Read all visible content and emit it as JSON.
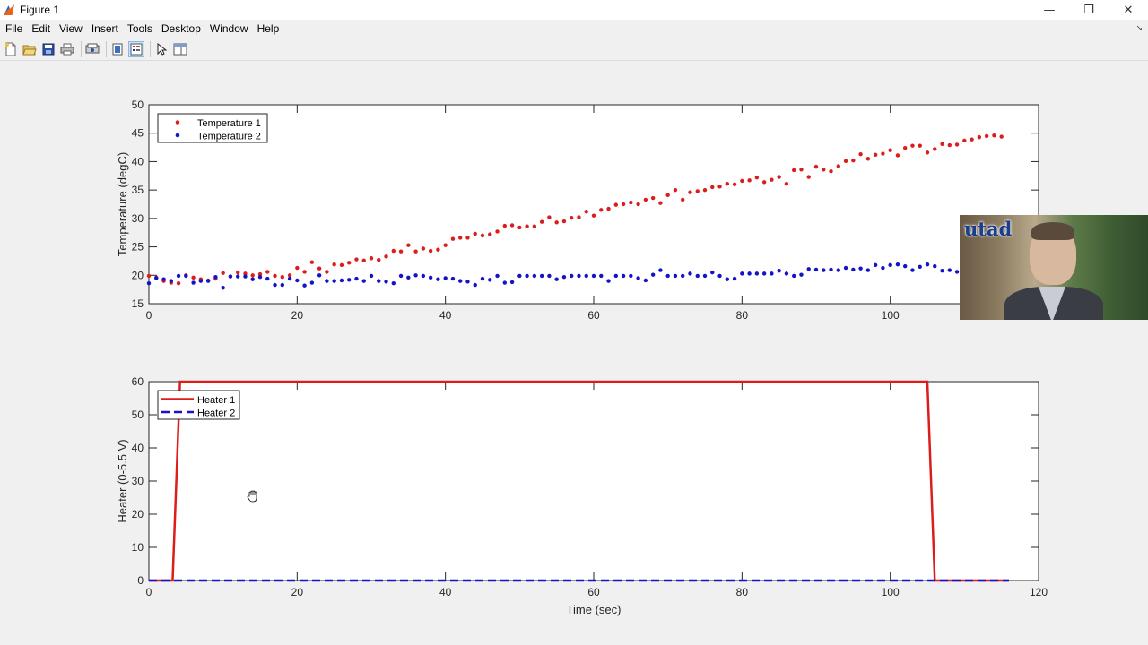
{
  "window": {
    "title": "Figure 1",
    "minimize_glyph": "—",
    "restore_glyph": "❐",
    "close_glyph": "✕"
  },
  "menu": [
    "File",
    "Edit",
    "View",
    "Insert",
    "Tools",
    "Desktop",
    "Window",
    "Help"
  ],
  "toolbar": {
    "icons": [
      "new-figure-icon",
      "open-file-icon",
      "save-icon",
      "print-icon",
      "print-preview-icon",
      "link-plot-icon",
      "insert-legend-icon",
      "edit-plot-cursor-icon",
      "property-inspector-icon"
    ]
  },
  "webcam": {
    "logo_text": "utad"
  },
  "chart_data": [
    {
      "type": "scatter",
      "title": "",
      "xlabel": "",
      "ylabel": "Temperature (degC)",
      "xlim": [
        0,
        120
      ],
      "ylim": [
        15,
        50
      ],
      "xticks": [
        0,
        20,
        40,
        60,
        80,
        100
      ],
      "yticks": [
        15,
        20,
        25,
        30,
        35,
        40,
        45,
        50
      ],
      "grid": false,
      "legend": "top-left",
      "series": [
        {
          "name": "Temperature 1",
          "color": "#dd1c1c",
          "x": [
            0,
            1,
            2,
            3,
            4,
            5,
            6,
            7,
            8,
            9,
            10,
            11,
            12,
            13,
            14,
            15,
            16,
            17,
            18,
            19,
            20,
            21,
            22,
            23,
            24,
            25,
            26,
            27,
            28,
            29,
            30,
            31,
            32,
            33,
            34,
            35,
            36,
            37,
            38,
            39,
            40,
            41,
            42,
            43,
            44,
            45,
            46,
            47,
            48,
            49,
            50,
            51,
            52,
            53,
            54,
            55,
            56,
            57,
            58,
            59,
            60,
            61,
            62,
            63,
            64,
            65,
            66,
            67,
            68,
            69,
            70,
            71,
            72,
            73,
            74,
            75,
            76,
            77,
            78,
            79,
            80,
            81,
            82,
            83,
            84,
            85,
            86,
            87,
            88,
            89,
            90,
            91,
            92,
            93,
            94,
            95,
            96,
            97,
            98,
            99,
            100,
            101,
            102,
            103,
            104,
            105,
            106,
            107,
            108,
            109,
            110,
            111,
            112,
            113,
            114,
            115
          ],
          "y": [
            19.9,
            19.6,
            19.0,
            18.7,
            18.6,
            20.0,
            19.6,
            19.3,
            19.1,
            19.4,
            20.4,
            19.8,
            20.5,
            20.3,
            20.0,
            20.2,
            20.6,
            19.9,
            19.7,
            20.0,
            21.3,
            20.6,
            22.3,
            21.2,
            20.6,
            21.9,
            21.8,
            22.2,
            22.8,
            22.6,
            23.0,
            22.7,
            23.3,
            24.3,
            24.2,
            25.3,
            24.2,
            24.7,
            24.3,
            24.5,
            25.3,
            26.4,
            26.6,
            26.6,
            27.3,
            27.0,
            27.2,
            27.7,
            28.7,
            28.8,
            28.4,
            28.6,
            28.6,
            29.4,
            30.2,
            29.3,
            29.5,
            30.1,
            30.2,
            31.2,
            30.5,
            31.5,
            31.7,
            32.4,
            32.5,
            32.8,
            32.5,
            33.3,
            33.6,
            32.7,
            34.1,
            35.0,
            33.3,
            34.6,
            34.8,
            35.0,
            35.5,
            35.6,
            36.1,
            36.0,
            36.6,
            36.7,
            37.2,
            36.4,
            36.8,
            37.3,
            36.1,
            38.5,
            38.6,
            37.3,
            39.1,
            38.6,
            38.3,
            39.2,
            40.1,
            40.2,
            41.3,
            40.5,
            41.2,
            41.4,
            42.0,
            41.1,
            42.4,
            42.8,
            42.8,
            41.6,
            42.2,
            43.1,
            42.9,
            43.0,
            43.7,
            43.9,
            44.3,
            44.5,
            44.6,
            44.4
          ]
        },
        {
          "name": "Temperature 2",
          "color": "#1313c8",
          "x": [
            0,
            1,
            2,
            3,
            4,
            5,
            6,
            7,
            8,
            9,
            10,
            11,
            12,
            13,
            14,
            15,
            16,
            17,
            18,
            19,
            20,
            21,
            22,
            23,
            24,
            25,
            26,
            27,
            28,
            29,
            30,
            31,
            32,
            33,
            34,
            35,
            36,
            37,
            38,
            39,
            40,
            41,
            42,
            43,
            44,
            45,
            46,
            47,
            48,
            49,
            50,
            51,
            52,
            53,
            54,
            55,
            56,
            57,
            58,
            59,
            60,
            61,
            62,
            63,
            64,
            65,
            66,
            67,
            68,
            69,
            70,
            71,
            72,
            73,
            74,
            75,
            76,
            77,
            78,
            79,
            80,
            81,
            82,
            83,
            84,
            85,
            86,
            87,
            88,
            89,
            90,
            91,
            92,
            93,
            94,
            95,
            96,
            97,
            98,
            99,
            100,
            101,
            102,
            103,
            104,
            105,
            106,
            107,
            108,
            109,
            110,
            111,
            112,
            113,
            114,
            115
          ],
          "y": [
            18.6,
            19.5,
            19.3,
            19.0,
            19.9,
            19.9,
            18.7,
            19.0,
            19.0,
            19.7,
            17.8,
            19.8,
            19.8,
            19.8,
            19.3,
            19.7,
            19.4,
            18.3,
            18.3,
            19.4,
            19.1,
            18.2,
            18.7,
            20.0,
            19.0,
            19.0,
            19.1,
            19.2,
            19.4,
            19.0,
            19.9,
            19.0,
            18.9,
            18.6,
            19.9,
            19.6,
            20.0,
            19.9,
            19.6,
            19.3,
            19.5,
            19.4,
            19.0,
            18.9,
            18.3,
            19.4,
            19.2,
            19.9,
            18.7,
            18.8,
            19.9,
            19.9,
            19.9,
            19.9,
            19.9,
            19.3,
            19.7,
            19.9,
            19.9,
            19.9,
            19.9,
            19.9,
            19.0,
            19.9,
            19.9,
            19.9,
            19.5,
            19.1,
            20.1,
            20.9,
            19.9,
            19.9,
            19.9,
            20.3,
            19.9,
            19.9,
            20.5,
            19.9,
            19.3,
            19.4,
            20.3,
            20.3,
            20.3,
            20.3,
            20.3,
            20.8,
            20.3,
            19.9,
            20.1,
            21.1,
            21.0,
            20.9,
            21.0,
            20.9,
            21.3,
            21.0,
            21.2,
            20.9,
            21.8,
            21.3,
            21.8,
            21.9,
            21.6,
            20.9,
            21.5,
            21.9,
            21.6,
            20.8,
            20.9,
            20.6,
            20.6,
            20.6,
            20.6,
            20.6,
            20.6,
            20.5
          ]
        }
      ]
    },
    {
      "type": "line",
      "title": "",
      "xlabel": "Time (sec)",
      "ylabel": "Heater (0-5.5 V)",
      "xlim": [
        0,
        120
      ],
      "ylim": [
        0,
        60
      ],
      "xticks": [
        0,
        20,
        40,
        60,
        80,
        100,
        120
      ],
      "yticks": [
        0,
        10,
        20,
        30,
        40,
        50,
        60
      ],
      "grid": false,
      "legend": "top-left",
      "series": [
        {
          "name": "Heater 1",
          "color": "#dd1c1c",
          "style": "solid",
          "x": [
            0,
            3.2,
            4.2,
            105,
            106,
            116
          ],
          "y": [
            0,
            0,
            60,
            60,
            0,
            0
          ]
        },
        {
          "name": "Heater 2",
          "color": "#1313c8",
          "style": "dashed",
          "x": [
            0,
            116
          ],
          "y": [
            0,
            0
          ]
        }
      ]
    }
  ]
}
